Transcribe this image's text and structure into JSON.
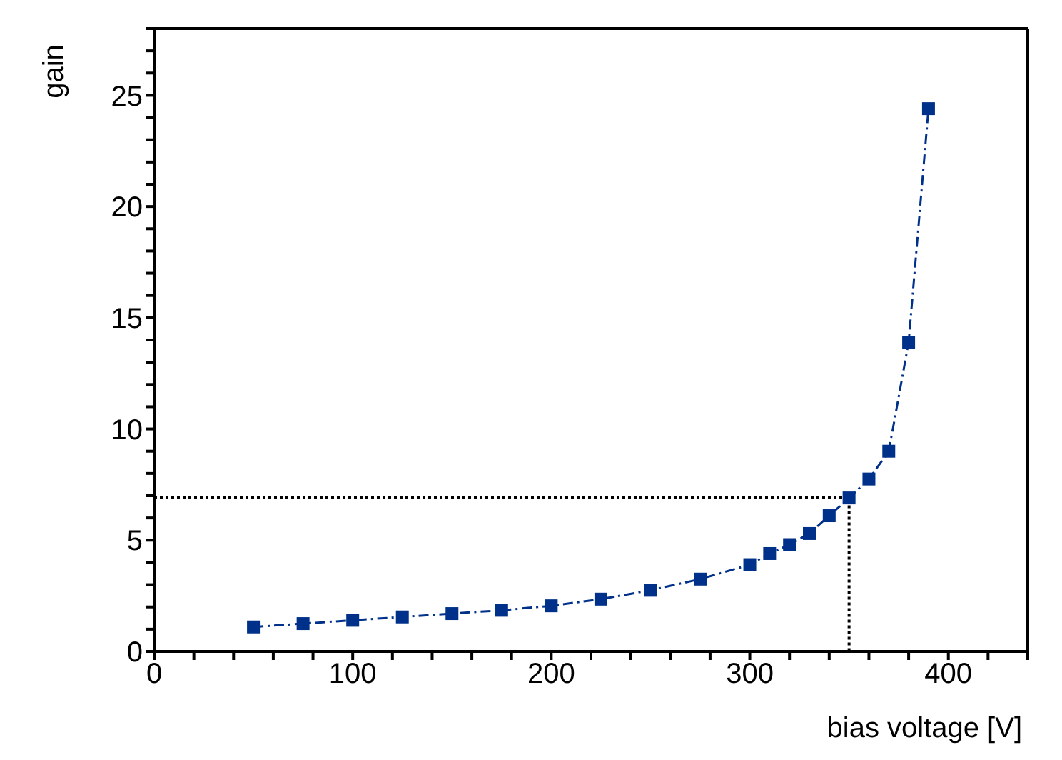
{
  "chart_data": {
    "type": "line",
    "xlabel": "bias voltage [V]",
    "ylabel": "gain",
    "xlim": [
      0,
      440
    ],
    "ylim": [
      0,
      28
    ],
    "xticks": [
      0,
      {
        "value": 20,
        "label": null
      },
      {
        "value": 40,
        "label": null
      },
      {
        "value": 60,
        "label": null
      },
      {
        "value": 80,
        "label": null
      },
      100,
      {
        "value": 120,
        "label": null
      },
      {
        "value": 140,
        "label": null
      },
      {
        "value": 160,
        "label": null
      },
      {
        "value": 180,
        "label": null
      },
      200,
      {
        "value": 220,
        "label": null
      },
      {
        "value": 240,
        "label": null
      },
      {
        "value": 260,
        "label": null
      },
      {
        "value": 280,
        "label": null
      },
      300,
      {
        "value": 320,
        "label": null
      },
      {
        "value": 340,
        "label": null
      },
      {
        "value": 360,
        "label": null
      },
      {
        "value": 380,
        "label": null
      },
      400,
      {
        "value": 420,
        "label": null
      },
      {
        "value": 440,
        "label": null
      }
    ],
    "yticks": [
      0,
      {
        "value": 1,
        "label": null
      },
      {
        "value": 2,
        "label": null
      },
      {
        "value": 3,
        "label": null
      },
      {
        "value": 4,
        "label": null
      },
      5,
      {
        "value": 6,
        "label": null
      },
      {
        "value": 7,
        "label": null
      },
      {
        "value": 8,
        "label": null
      },
      {
        "value": 9,
        "label": null
      },
      10,
      {
        "value": 11,
        "label": null
      },
      {
        "value": 12,
        "label": null
      },
      {
        "value": 13,
        "label": null
      },
      {
        "value": 14,
        "label": null
      },
      15,
      {
        "value": 16,
        "label": null
      },
      {
        "value": 17,
        "label": null
      },
      {
        "value": 18,
        "label": null
      },
      {
        "value": 19,
        "label": null
      },
      20,
      {
        "value": 21,
        "label": null
      },
      {
        "value": 22,
        "label": null
      },
      {
        "value": 23,
        "label": null
      },
      {
        "value": 24,
        "label": null
      },
      25,
      {
        "value": 26,
        "label": null
      },
      {
        "value": 27,
        "label": null
      },
      {
        "value": 28,
        "label": null
      }
    ],
    "series": [
      {
        "color": "#00318a",
        "marker": "square",
        "line_style": "dashed",
        "x": [
          50,
          75,
          100,
          125,
          150,
          175,
          200,
          225,
          250,
          275,
          300,
          310,
          320,
          330,
          340,
          350,
          360,
          370,
          380,
          390
        ],
        "values": [
          1.1,
          1.25,
          1.4,
          1.55,
          1.7,
          1.85,
          2.05,
          2.35,
          2.75,
          3.25,
          3.9,
          4.4,
          4.8,
          5.3,
          6.1,
          6.9,
          7.75,
          9.0,
          13.9,
          24.4
        ]
      },
      {
        "color": "#000000",
        "marker": "none",
        "line_style": "dotted",
        "x": [
          0,
          350,
          350
        ],
        "values": [
          6.9,
          6.9,
          0
        ]
      }
    ]
  }
}
